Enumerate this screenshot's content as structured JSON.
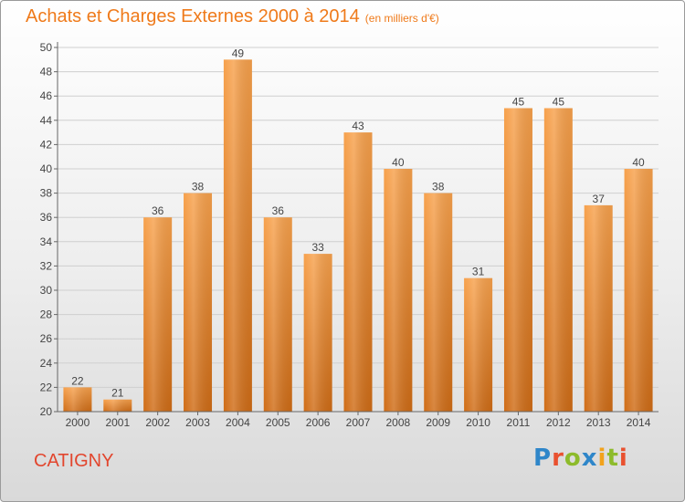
{
  "title": "Achats et Charges Externes 2000 à 2014",
  "subtitle": "(en milliers d'€)",
  "city": "CATIGNY",
  "logo": {
    "text": "Proxiti",
    "letters": [
      {
        "ch": "P",
        "color": "#2f86c9"
      },
      {
        "ch": "r",
        "color": "#e9512f"
      },
      {
        "ch": "o",
        "color": "#8dbb2b"
      },
      {
        "ch": "x",
        "color": "#2f86c9"
      },
      {
        "ch": "i",
        "color": "#f2a21c"
      },
      {
        "ch": "t",
        "color": "#8dbb2b"
      },
      {
        "ch": "i",
        "color": "#e9512f"
      }
    ]
  },
  "colors": {
    "title": "#ef7a1a",
    "city": "#e2462e",
    "bar_top": "#f7a14c",
    "bar_bottom": "#cf6c16"
  },
  "chart_data": {
    "type": "bar",
    "title": "Achats et Charges Externes 2000 à 2014",
    "subtitle": "(en milliers d'€)",
    "categories": [
      "2000",
      "2001",
      "2002",
      "2003",
      "2004",
      "2005",
      "2006",
      "2007",
      "2008",
      "2009",
      "2010",
      "2011",
      "2012",
      "2013",
      "2014"
    ],
    "values": [
      22,
      21,
      36,
      38,
      49,
      36,
      33,
      43,
      40,
      38,
      31,
      45,
      45,
      37,
      40
    ],
    "xlabel": "",
    "ylabel": "",
    "ylim": [
      20,
      50
    ],
    "yticks": [
      20,
      22,
      24,
      26,
      28,
      30,
      32,
      34,
      36,
      38,
      40,
      42,
      44,
      46,
      48,
      50
    ],
    "grid": "horizontal",
    "data_labels": true
  }
}
